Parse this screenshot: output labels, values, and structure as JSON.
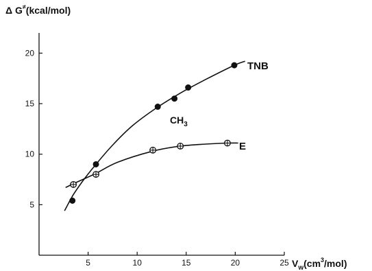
{
  "chart_data": {
    "type": "scatter",
    "ylabel_parts": {
      "pre": "Δ G",
      "sup": "≠",
      "post": "(kcal/mol)"
    },
    "xlabel_parts": {
      "pre": "V",
      "sub": "w",
      "mid": "(cm",
      "sup": "3",
      "post": "/mol)"
    },
    "xlim": [
      0,
      25
    ],
    "ylim": [
      0,
      22
    ],
    "xticks": [
      5,
      10,
      15,
      20,
      25
    ],
    "yticks": [
      5,
      10,
      15,
      20
    ],
    "grid": false,
    "series": [
      {
        "name": "TNB",
        "marker": "filled-circle",
        "x": [
          3.4,
          5.8,
          12.1,
          13.8,
          15.2,
          19.9
        ],
        "y": [
          5.4,
          9.0,
          14.7,
          15.5,
          16.6,
          18.8
        ],
        "curve": [
          [
            2.6,
            4.4
          ],
          [
            3.5,
            6.0
          ],
          [
            4.5,
            7.4
          ],
          [
            5.8,
            9.0
          ],
          [
            7.5,
            10.9
          ],
          [
            9.5,
            12.8
          ],
          [
            12.0,
            14.6
          ],
          [
            14.5,
            16.1
          ],
          [
            17.0,
            17.4
          ],
          [
            19.9,
            18.8
          ],
          [
            21.0,
            19.2
          ]
        ]
      },
      {
        "name": "E",
        "marker": "crossed-circle",
        "x": [
          3.5,
          5.8,
          11.6,
          14.4,
          19.2
        ],
        "y": [
          7.0,
          8.0,
          10.4,
          10.8,
          11.1
        ],
        "curve": [
          [
            2.7,
            6.7
          ],
          [
            4.0,
            7.3
          ],
          [
            5.8,
            8.1
          ],
          [
            8.0,
            9.2
          ],
          [
            11.6,
            10.3
          ],
          [
            14.4,
            10.8
          ],
          [
            17.0,
            11.0
          ],
          [
            19.2,
            11.1
          ],
          [
            20.3,
            11.1
          ]
        ]
      }
    ],
    "annotations": [
      {
        "text_parts": {
          "pre": "CH",
          "sub": "3"
        },
        "x": 13.7,
        "y": 13.5
      }
    ]
  }
}
